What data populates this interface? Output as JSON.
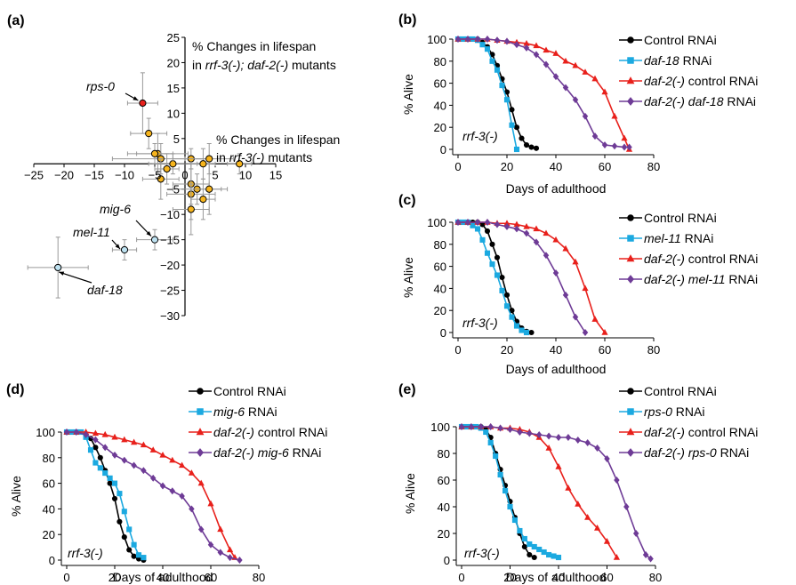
{
  "colors": {
    "control": "#000000",
    "rnai": "#1ba9e0",
    "daf2_control": "#e8201b",
    "daf2_rnai": "#6e3b96",
    "scatter_default": "#f6b41c",
    "rps0_point": "#e8201b",
    "neg_point": "#bfe3f2",
    "error": "#999999"
  },
  "chart_data": [
    {
      "panel": "(a)",
      "type": "scatter",
      "ylabel_line1": "% Changes in lifespan",
      "ylabel_line2_pre": "in ",
      "ylabel_line2_it": "rrf-3(-); daf-2(-)",
      "ylabel_line2_post": " mutants",
      "xlabel_line1": "% Changes in lifespan",
      "xlabel_line2_pre": "in ",
      "xlabel_line2_it": "rrf-3(-)",
      "xlabel_line2_post": " mutants",
      "xlim": [
        -25,
        15
      ],
      "ylim": [
        -30,
        25
      ],
      "xticks": [
        -25,
        -20,
        -15,
        -10,
        -5,
        0,
        5,
        10,
        15
      ],
      "yticks": [
        -30,
        -25,
        -20,
        -15,
        -10,
        -5,
        0,
        5,
        10,
        15,
        20,
        25
      ],
      "points": [
        {
          "x": -7,
          "y": 12,
          "xerr": 2.5,
          "yerr": 6,
          "label": "rps-0",
          "highlight": "rps0"
        },
        {
          "x": -6,
          "y": 6,
          "xerr": 3,
          "yerr": 3
        },
        {
          "x": -4.5,
          "y": 2,
          "xerr": 5,
          "yerr": 4
        },
        {
          "x": -5,
          "y": 2,
          "xerr": 3,
          "yerr": 2
        },
        {
          "x": -4,
          "y": 1,
          "xerr": 8,
          "yerr": 3
        },
        {
          "x": -4,
          "y": -3,
          "xerr": 3,
          "yerr": 4
        },
        {
          "x": -3,
          "y": -1,
          "xerr": 2,
          "yerr": 3
        },
        {
          "x": -2,
          "y": 0,
          "xerr": 4,
          "yerr": 2
        },
        {
          "x": 1,
          "y": 1,
          "xerr": 3,
          "yerr": 2
        },
        {
          "x": 4,
          "y": 1,
          "xerr": 4,
          "yerr": 3
        },
        {
          "x": 9,
          "y": 0,
          "xerr": 2,
          "yerr": 2
        },
        {
          "x": 3,
          "y": 0,
          "xerr": 2,
          "yerr": 3
        },
        {
          "x": 1,
          "y": -4,
          "xerr": 3,
          "yerr": 4
        },
        {
          "x": 2,
          "y": -5,
          "xerr": 4,
          "yerr": 3
        },
        {
          "x": 4,
          "y": -5,
          "xerr": 3,
          "yerr": 5
        },
        {
          "x": 1,
          "y": -6,
          "xerr": 4,
          "yerr": 5
        },
        {
          "x": 3,
          "y": -7,
          "xerr": 2,
          "yerr": 4
        },
        {
          "x": 1,
          "y": -9,
          "xerr": 3,
          "yerr": 5
        },
        {
          "x": -5,
          "y": -15,
          "xerr": 3,
          "yerr": 2,
          "label": "mig-6",
          "highlight": "neg"
        },
        {
          "x": -10,
          "y": -17,
          "xerr": 2,
          "yerr": 2,
          "label": "mel-11",
          "highlight": "neg"
        },
        {
          "x": -21,
          "y": -20.5,
          "xerr": 5,
          "yerr": 6,
          "label": "daf-18",
          "highlight": "neg"
        }
      ]
    },
    {
      "panel": "(b)",
      "type": "line",
      "xlabel": "Days of adulthood",
      "ylabel": "% Alive",
      "strain": "rrf-3(-)",
      "xlim": [
        0,
        80
      ],
      "ylim": [
        0,
        100
      ],
      "xticks": [
        0,
        20,
        40,
        60,
        80
      ],
      "yticks": [
        0,
        20,
        40,
        60,
        80,
        100
      ],
      "series": [
        {
          "name_pre": "Control RNAi",
          "name_it": "",
          "name_post": "",
          "color_key": "control",
          "marker": "circle",
          "x": [
            0,
            2,
            4,
            6,
            8,
            10,
            12,
            14,
            16,
            18,
            20,
            22,
            24,
            26,
            28,
            30,
            32
          ],
          "y": [
            100,
            100,
            100,
            100,
            100,
            97,
            93,
            86,
            76,
            64,
            52,
            36,
            20,
            10,
            4,
            2,
            1
          ]
        },
        {
          "name_pre": "",
          "name_it": "daf-18",
          "name_post": " RNAi",
          "color_key": "rnai",
          "marker": "square",
          "x": [
            0,
            2,
            4,
            6,
            8,
            10,
            12,
            14,
            16,
            18,
            20,
            22,
            24
          ],
          "y": [
            100,
            100,
            100,
            100,
            99,
            95,
            91,
            80,
            72,
            58,
            45,
            22,
            0
          ]
        },
        {
          "name_pre": "",
          "name_it": "daf-2(-)",
          "name_post": " control RNAi",
          "color_key": "daf2_control",
          "marker": "triangle",
          "x": [
            0,
            4,
            8,
            12,
            16,
            20,
            24,
            28,
            32,
            36,
            40,
            44,
            48,
            52,
            56,
            60,
            64,
            68,
            70
          ],
          "y": [
            100,
            100,
            100,
            100,
            99,
            98,
            97,
            96,
            94,
            90,
            87,
            80,
            76,
            70,
            64,
            52,
            30,
            10,
            0
          ]
        },
        {
          "name_pre": "",
          "name_it": "daf-2(-) daf-18",
          "name_post": " RNAi",
          "color_key": "daf2_rnai",
          "marker": "diamond",
          "x": [
            0,
            4,
            8,
            12,
            16,
            20,
            24,
            28,
            32,
            36,
            40,
            44,
            48,
            52,
            56,
            60,
            64,
            68,
            70
          ],
          "y": [
            100,
            100,
            100,
            100,
            99,
            98,
            95,
            92,
            86,
            77,
            66,
            56,
            45,
            30,
            12,
            4,
            3,
            2,
            2
          ]
        }
      ]
    },
    {
      "panel": "(c)",
      "type": "line",
      "xlabel": "Days of adulthood",
      "ylabel": "% Alive",
      "strain": "rrf-3(-)",
      "xlim": [
        0,
        80
      ],
      "ylim": [
        0,
        100
      ],
      "xticks": [
        0,
        20,
        40,
        60,
        80
      ],
      "yticks": [
        0,
        20,
        40,
        60,
        80,
        100
      ],
      "series": [
        {
          "name_pre": "Control RNAi",
          "name_it": "",
          "name_post": "",
          "color_key": "control",
          "marker": "circle",
          "x": [
            0,
            2,
            4,
            6,
            8,
            10,
            12,
            14,
            16,
            18,
            20,
            22,
            24,
            26,
            28,
            30
          ],
          "y": [
            100,
            100,
            100,
            100,
            100,
            98,
            92,
            80,
            68,
            50,
            34,
            20,
            10,
            4,
            1,
            0
          ]
        },
        {
          "name_pre": "",
          "name_it": "mel-11",
          "name_post": " RNAi",
          "color_key": "rnai",
          "marker": "square",
          "x": [
            0,
            2,
            4,
            6,
            8,
            10,
            12,
            14,
            16,
            18,
            20,
            22,
            24,
            26,
            28
          ],
          "y": [
            100,
            100,
            100,
            97,
            94,
            84,
            72,
            62,
            52,
            38,
            24,
            14,
            6,
            2,
            0
          ]
        },
        {
          "name_pre": "",
          "name_it": "daf-2(-)",
          "name_post": " control RNAi",
          "color_key": "daf2_control",
          "marker": "triangle",
          "x": [
            0,
            4,
            8,
            12,
            16,
            20,
            24,
            28,
            32,
            36,
            40,
            44,
            48,
            52,
            56,
            60
          ],
          "y": [
            100,
            100,
            100,
            100,
            99,
            99,
            98,
            96,
            94,
            90,
            84,
            76,
            64,
            40,
            12,
            0
          ]
        },
        {
          "name_pre": "",
          "name_it": "daf-2(-) mel-11",
          "name_post": " RNAi",
          "color_key": "daf2_rnai",
          "marker": "diamond",
          "x": [
            0,
            4,
            8,
            12,
            16,
            20,
            24,
            28,
            32,
            36,
            40,
            44,
            48,
            52
          ],
          "y": [
            100,
            100,
            100,
            100,
            98,
            96,
            94,
            90,
            82,
            70,
            54,
            34,
            14,
            0
          ]
        }
      ]
    },
    {
      "panel": "(d)",
      "type": "line",
      "xlabel": "Days of adulthood",
      "ylabel": "% Alive",
      "strain": "rrf-3(-)",
      "xlim": [
        0,
        80
      ],
      "ylim": [
        0,
        100
      ],
      "xticks": [
        0,
        20,
        40,
        60,
        80
      ],
      "yticks": [
        0,
        20,
        40,
        60,
        80,
        100
      ],
      "series": [
        {
          "name_pre": "Control RNAi",
          "name_it": "",
          "name_post": "",
          "color_key": "control",
          "marker": "circle",
          "x": [
            0,
            2,
            4,
            6,
            8,
            10,
            12,
            14,
            16,
            18,
            20,
            22,
            24,
            26,
            28,
            30,
            32
          ],
          "y": [
            100,
            100,
            100,
            100,
            98,
            95,
            88,
            80,
            70,
            60,
            48,
            30,
            18,
            8,
            3,
            1,
            0
          ]
        },
        {
          "name_pre": "",
          "name_it": "mig-6",
          "name_post": " RNAi",
          "color_key": "rnai",
          "marker": "square",
          "x": [
            0,
            2,
            4,
            6,
            8,
            10,
            12,
            14,
            16,
            18,
            20,
            22,
            24,
            26,
            28,
            30,
            32
          ],
          "y": [
            100,
            100,
            100,
            100,
            96,
            86,
            76,
            72,
            68,
            64,
            60,
            52,
            38,
            24,
            12,
            4,
            2
          ]
        },
        {
          "name_pre": "",
          "name_it": "daf-2(-)",
          "name_post": " control RNAi",
          "color_key": "daf2_control",
          "marker": "triangle",
          "x": [
            0,
            4,
            8,
            12,
            16,
            20,
            24,
            28,
            32,
            36,
            40,
            44,
            48,
            52,
            56,
            60,
            64,
            68,
            70
          ],
          "y": [
            100,
            100,
            100,
            99,
            98,
            96,
            94,
            92,
            90,
            86,
            82,
            78,
            74,
            68,
            60,
            44,
            24,
            8,
            2
          ]
        },
        {
          "name_pre": "",
          "name_it": "daf-2(-) mig-6",
          "name_post": " RNAi",
          "color_key": "daf2_rnai",
          "marker": "diamond",
          "x": [
            0,
            4,
            8,
            12,
            16,
            20,
            24,
            28,
            32,
            36,
            40,
            44,
            48,
            52,
            56,
            60,
            64,
            68,
            72
          ],
          "y": [
            100,
            100,
            98,
            94,
            88,
            82,
            78,
            74,
            70,
            64,
            58,
            54,
            50,
            40,
            24,
            12,
            6,
            2,
            0
          ]
        }
      ]
    },
    {
      "panel": "(e)",
      "type": "line",
      "xlabel": "Days of adulthood",
      "ylabel": "% Alive",
      "strain": "rrf-3(-)",
      "xlim": [
        0,
        80
      ],
      "ylim": [
        0,
        100
      ],
      "xticks": [
        0,
        20,
        40,
        60,
        80
      ],
      "yticks": [
        0,
        20,
        40,
        60,
        80,
        100
      ],
      "series": [
        {
          "name_pre": "Control RNAi",
          "name_it": "",
          "name_post": "",
          "color_key": "control",
          "marker": "circle",
          "x": [
            0,
            2,
            4,
            6,
            8,
            10,
            12,
            14,
            16,
            18,
            20,
            22,
            24,
            26,
            28,
            30
          ],
          "y": [
            100,
            100,
            100,
            100,
            100,
            98,
            92,
            80,
            68,
            56,
            44,
            32,
            20,
            10,
            4,
            2
          ]
        },
        {
          "name_pre": "",
          "name_it": "rps-0",
          "name_post": " RNAi",
          "color_key": "rnai",
          "marker": "square",
          "x": [
            0,
            2,
            4,
            6,
            8,
            10,
            12,
            14,
            16,
            18,
            20,
            22,
            24,
            26,
            28,
            30,
            32,
            34,
            36,
            38,
            40
          ],
          "y": [
            100,
            100,
            100,
            100,
            99,
            96,
            88,
            78,
            64,
            52,
            40,
            30,
            22,
            16,
            12,
            10,
            8,
            6,
            4,
            3,
            2
          ]
        },
        {
          "name_pre": "",
          "name_it": "daf-2(-)",
          "name_post": " control RNAi",
          "color_key": "daf2_control",
          "marker": "triangle",
          "x": [
            0,
            4,
            8,
            12,
            16,
            20,
            24,
            28,
            32,
            36,
            40,
            44,
            48,
            52,
            56,
            60,
            64
          ],
          "y": [
            100,
            100,
            100,
            100,
            99,
            99,
            98,
            96,
            92,
            84,
            70,
            54,
            42,
            32,
            24,
            14,
            2
          ]
        },
        {
          "name_pre": "",
          "name_it": "daf-2(-) rps-0",
          "name_post": " RNAi",
          "color_key": "daf2_rnai",
          "marker": "diamond",
          "x": [
            0,
            4,
            8,
            12,
            16,
            20,
            24,
            28,
            32,
            36,
            40,
            44,
            48,
            52,
            56,
            60,
            64,
            68,
            72,
            76,
            78
          ],
          "y": [
            100,
            100,
            100,
            100,
            99,
            98,
            96,
            95,
            94,
            93,
            92,
            92,
            90,
            88,
            84,
            76,
            60,
            40,
            20,
            4,
            1
          ]
        }
      ]
    }
  ]
}
